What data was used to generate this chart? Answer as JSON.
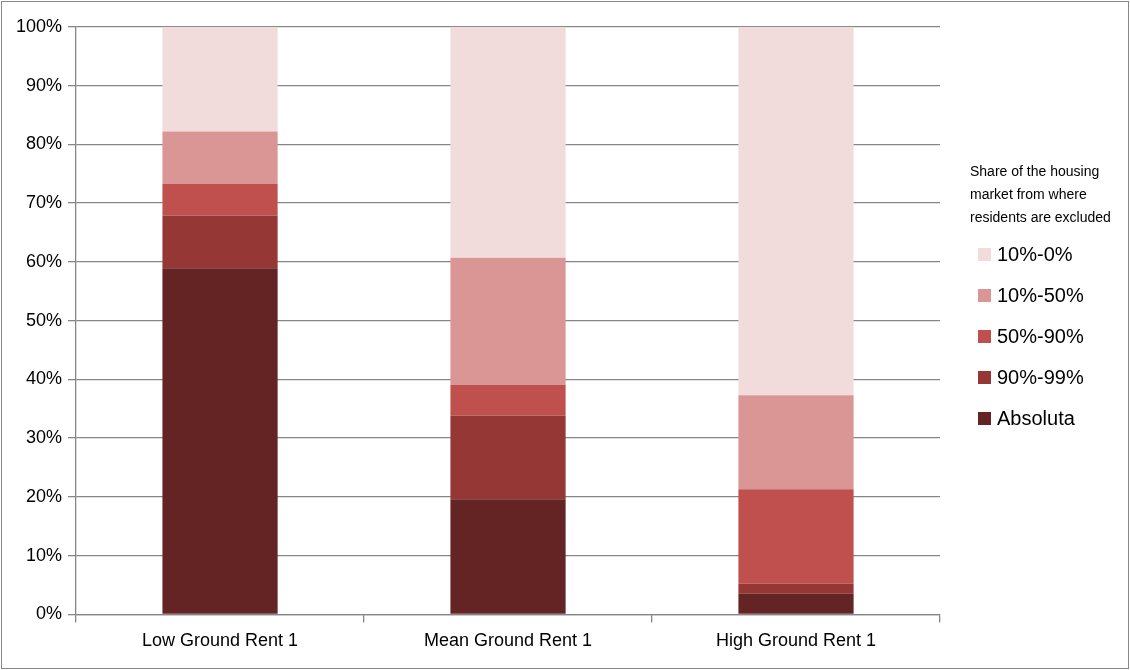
{
  "chart_data": {
    "type": "bar",
    "stacked": true,
    "categories": [
      "Low Ground Rent 1",
      "Mean Ground Rent 1",
      "High Ground Rent 1"
    ],
    "series": [
      {
        "name": "Absoluta",
        "color": "#632423",
        "values": [
          58.9,
          19.6,
          3.5
        ]
      },
      {
        "name": "90%-99%",
        "color": "#953735",
        "values": [
          9.0,
          14.2,
          1.7
        ]
      },
      {
        "name": "50%-90%",
        "color": "#c0504d",
        "values": [
          5.4,
          5.3,
          16.1
        ]
      },
      {
        "name": "10%-50%",
        "color": "#d99694",
        "values": [
          8.9,
          21.6,
          16.0
        ]
      },
      {
        "name": "10%-0%",
        "color": "#f2dcdb",
        "values": [
          17.8,
          39.3,
          62.7
        ]
      }
    ],
    "ylim": [
      0,
      100
    ],
    "yticks": [
      {
        "value": 0,
        "label": "0%"
      },
      {
        "value": 10,
        "label": "10%"
      },
      {
        "value": 20,
        "label": "20%"
      },
      {
        "value": 30,
        "label": "30%"
      },
      {
        "value": 40,
        "label": "40%"
      },
      {
        "value": 50,
        "label": "50%"
      },
      {
        "value": 60,
        "label": "60%"
      },
      {
        "value": 70,
        "label": "70%"
      },
      {
        "value": 80,
        "label": "80%"
      },
      {
        "value": 90,
        "label": "90%"
      },
      {
        "value": 100,
        "label": "100%"
      }
    ],
    "grid": "y",
    "legend": "right",
    "legend_title": "Share of the housing market from where residents are excluded"
  }
}
